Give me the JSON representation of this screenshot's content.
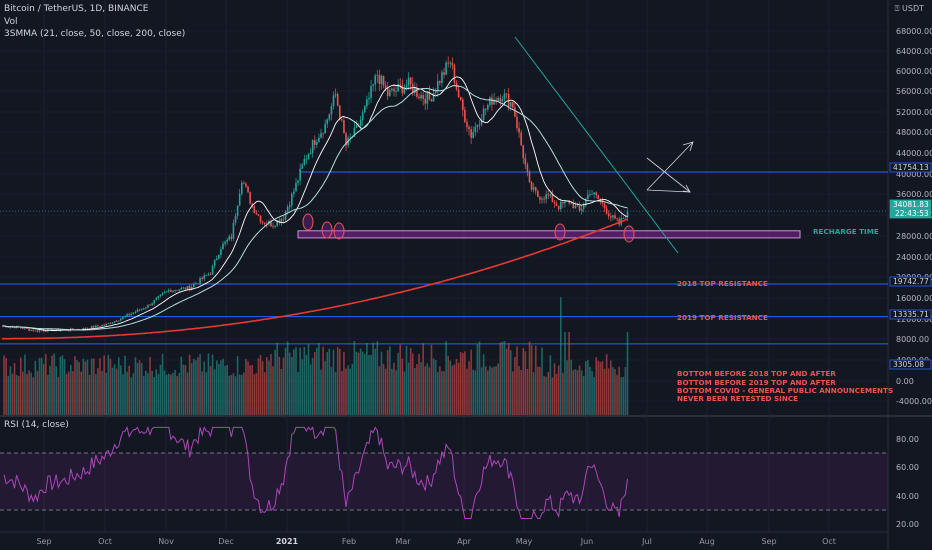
{
  "header": {
    "title": "Bitcoin / TetherUS, 1D, BINANCE",
    "volume_label": "Vol",
    "ma_label": "3SMMA (21, close, 50, close, 200, close)",
    "currency": "USDT"
  },
  "rsi_panel": {
    "label": "RSI (14, close)"
  },
  "colors": {
    "background": "#131722",
    "up": "#26a69a",
    "down": "#ef5350",
    "ma21": "#ffffff",
    "ma50": "#b2dfdb",
    "ma200": "#e53935",
    "line_blue": "#2962ff",
    "zone": "#9c27b0",
    "rsi": "#ab47bc",
    "annotation_red": "#ef5350",
    "annotation_teal": "#26a69a"
  },
  "chart_data": {
    "type": "candlestick",
    "price_ticks": [
      "68000.00",
      "64000.00",
      "60000.00",
      "56000.00",
      "52000.00",
      "48000.00",
      "44000.00",
      "40000.00",
      "36000.00",
      "32000.00",
      "28000.00",
      "24000.00",
      "20000.00",
      "16000.00",
      "12000.00",
      "8000.00",
      "4000.00",
      "0.00",
      "-4000.00"
    ],
    "rsi_ticks": [
      "80.00",
      "60.00",
      "40.00",
      "20.00"
    ],
    "x_ticks": [
      "Sep",
      "Oct",
      "Nov",
      "Dec",
      "2021",
      "Feb",
      "Mar",
      "Apr",
      "May",
      "Jun",
      "Jul",
      "Aug",
      "Sep",
      "Oct"
    ],
    "price_labels": [
      {
        "value": "41754.13",
        "color": "#2962ff"
      },
      {
        "value": "34081.83",
        "time": "22:43:53",
        "color": "#26a69a"
      },
      {
        "value": "19742.77",
        "color": "#2962ff"
      },
      {
        "value": "13335.71",
        "color": "#2962ff"
      },
      {
        "value": "3305.08",
        "color": "#2962ff"
      }
    ],
    "horizontal_levels": [
      41754.13,
      19742.77,
      13335.71,
      3305.08
    ],
    "support_zone": [
      28800,
      30200
    ],
    "rsi_bands": [
      70,
      30
    ],
    "price_path": [
      [
        0,
        11500
      ],
      [
        8,
        11200
      ],
      [
        16,
        10500
      ],
      [
        21,
        10700
      ],
      [
        30,
        10700
      ],
      [
        40,
        11000
      ],
      [
        50,
        11800
      ],
      [
        60,
        13500
      ],
      [
        70,
        15500
      ],
      [
        80,
        18500
      ],
      [
        90,
        19000
      ],
      [
        100,
        22000
      ],
      [
        105,
        27000
      ],
      [
        110,
        29000
      ],
      [
        115,
        40500
      ],
      [
        120,
        35000
      ],
      [
        125,
        32000
      ],
      [
        130,
        31500
      ],
      [
        135,
        33000
      ],
      [
        140,
        38000
      ],
      [
        145,
        44000
      ],
      [
        150,
        48000
      ],
      [
        155,
        51000
      ],
      [
        160,
        57000
      ],
      [
        165,
        47000
      ],
      [
        170,
        50000
      ],
      [
        175,
        55000
      ],
      [
        180,
        61000
      ],
      [
        185,
        57000
      ],
      [
        190,
        58000
      ],
      [
        195,
        59000
      ],
      [
        200,
        57000
      ],
      [
        205,
        56000
      ],
      [
        210,
        60000
      ],
      [
        215,
        63500
      ],
      [
        220,
        55000
      ],
      [
        225,
        49000
      ],
      [
        230,
        53000
      ],
      [
        235,
        56000
      ],
      [
        240,
        57000
      ],
      [
        245,
        55000
      ],
      [
        250,
        45000
      ],
      [
        253,
        39000
      ],
      [
        257,
        37000
      ],
      [
        262,
        37000
      ],
      [
        267,
        35000
      ],
      [
        272,
        36000
      ],
      [
        277,
        34000
      ],
      [
        282,
        38000
      ],
      [
        287,
        36000
      ],
      [
        292,
        33000
      ],
      [
        296,
        31500
      ],
      [
        300,
        34081
      ]
    ],
    "annotations": [
      {
        "text": "RECHARGE TIME",
        "color": "#26a69a"
      },
      {
        "text": "2018 TOP RESISTANCE",
        "color": "#ef5350"
      },
      {
        "text": "2019 TOP RESISTANCE",
        "color": "#ef5350"
      },
      {
        "text": "BOTTOM BEFORE 2018 TOP AND AFTER",
        "color": "#ef5350"
      },
      {
        "text": "BOTTOM BEFORE 2019 TOP AND AFTER",
        "color": "#ef5350"
      },
      {
        "text": "BOTTOM COVID - GENERAL PUBLIC ANNOUNCEMENTS",
        "color": "#ef5350"
      },
      {
        "text": "NEVER BEEN RETESTED SINCE",
        "color": "#ef5350"
      }
    ]
  }
}
